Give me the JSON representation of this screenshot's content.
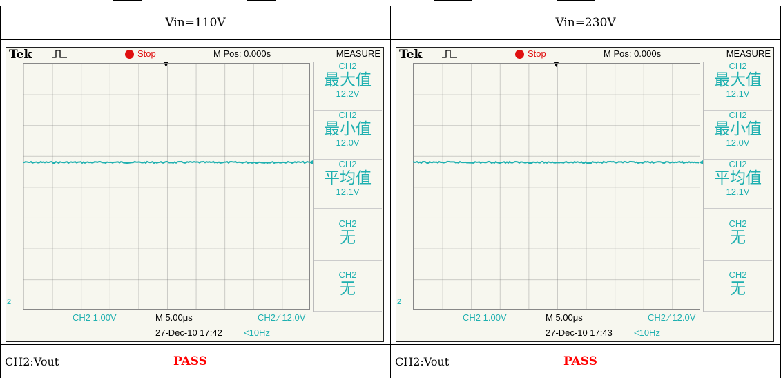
{
  "table": {
    "columns": [
      {
        "header": "Vin=110V",
        "scope": {
          "brand": "Tek",
          "trigger_icon": "pulse-trigger-icon",
          "run_state": "Stop",
          "m_pos": "M Pos: 0.000s",
          "menu_title": "MEASURE",
          "measurements": [
            {
              "channel": "CH2",
              "name": "最大值",
              "value": "12.2V"
            },
            {
              "channel": "CH2",
              "name": "最小值",
              "value": "12.0V"
            },
            {
              "channel": "CH2",
              "name": "平均值",
              "value": "12.1V"
            },
            {
              "channel": "CH2",
              "name": "无",
              "value": ""
            },
            {
              "channel": "CH2",
              "name": "无",
              "value": ""
            }
          ],
          "ch2_scale": "CH2  1.00V",
          "timebase": "M 5.00μs",
          "trigger_level": "CH2 ∕ 12.0V",
          "datetime": "27-Dec-10 17:42",
          "frequency": "<10Hz",
          "channel_marker": "2"
        },
        "footer_label": "CH2:Vout",
        "footer_result": "PASS"
      },
      {
        "header": "Vin=230V",
        "scope": {
          "brand": "Tek",
          "trigger_icon": "pulse-trigger-icon",
          "run_state": "Stop",
          "m_pos": "M Pos: 0.000s",
          "menu_title": "MEASURE",
          "measurements": [
            {
              "channel": "CH2",
              "name": "最大值",
              "value": "12.1V"
            },
            {
              "channel": "CH2",
              "name": "最小值",
              "value": "12.0V"
            },
            {
              "channel": "CH2",
              "name": "平均值",
              "value": "12.1V"
            },
            {
              "channel": "CH2",
              "name": "无",
              "value": ""
            },
            {
              "channel": "CH2",
              "name": "无",
              "value": ""
            }
          ],
          "ch2_scale": "CH2  1.00V",
          "timebase": "M 5.00μs",
          "trigger_level": "CH2 ∕ 12.0V",
          "datetime": "27-Dec-10 17:43",
          "frequency": "<10Hz",
          "channel_marker": "2"
        },
        "footer_label": "CH2:Vout",
        "footer_result": "PASS"
      }
    ]
  },
  "colors": {
    "trace": "#1fb0b0",
    "stop": "#e01010",
    "pass": "#ff0000",
    "screen_bg": "#f7f7ef"
  }
}
